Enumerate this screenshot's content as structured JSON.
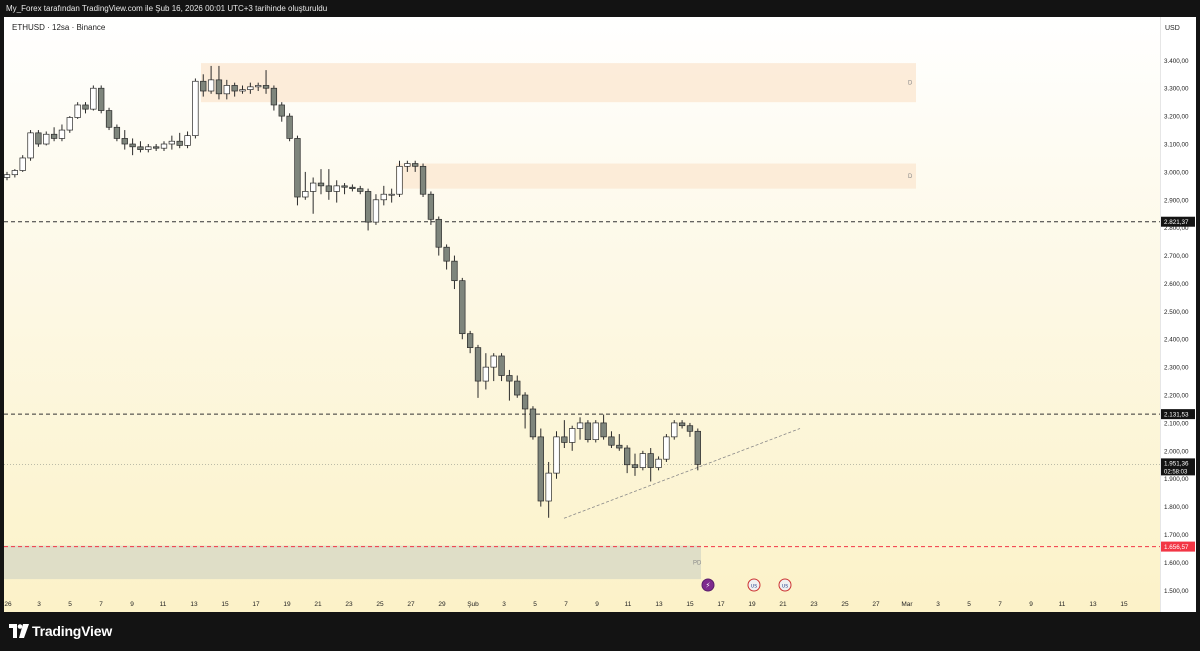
{
  "header": {
    "caption": "My_Forex tarafından TradingView.com ile Şub 16, 2026 00:01 UTC+3 tarihinde oluşturuldu"
  },
  "chart": {
    "legend": "ETHUSD · 12sa · Binance",
    "currency": "USD",
    "zone_labels": [
      "D",
      "D",
      "PD"
    ],
    "price_tags": [
      {
        "label": "2.821,37",
        "price": 2821.37,
        "style": "dark"
      },
      {
        "label": "2.131,53",
        "price": 2131.53,
        "style": "dark"
      },
      {
        "current": "1.951,36",
        "countdown": "02:58:03",
        "price": 1951.36,
        "style": "dark"
      },
      {
        "label": "1.656,57",
        "price": 1656.57,
        "style": "red"
      }
    ],
    "colors": {
      "bull": "#ffffff",
      "bear": "#7e857c",
      "wick": "#2a2a2a",
      "red_tag": "#f23645",
      "dark_tag": "#131313",
      "zone": "#fbe9d3",
      "pd_zone": "#d9d9c6"
    }
  },
  "chart_data": {
    "type": "candlestick",
    "title": "ETHUSD · 12sa · Binance",
    "y_unit": "USD",
    "ylim": [
      1440,
      3455
    ],
    "y_ticks": [
      "1.500,00",
      "1.600,00",
      "1.700,00",
      "1.800,00",
      "1.900,00",
      "2.000,00",
      "2.100,00",
      "2.200,00",
      "2.300,00",
      "2.400,00",
      "2.500,00",
      "2.600,00",
      "2.700,00",
      "2.800,00",
      "2.900,00",
      "3.000,00",
      "3.100,00",
      "3.200,00",
      "3.300,00",
      "3.400,00"
    ],
    "x_ticks": [
      "26",
      "3",
      "5",
      "7",
      "9",
      "11",
      "13",
      "15",
      "17",
      "19",
      "21",
      "23",
      "25",
      "27",
      "29",
      "Şub",
      "3",
      "5",
      "7",
      "9",
      "11",
      "13",
      "15",
      "17",
      "19",
      "21",
      "23",
      "25",
      "27",
      "Mar",
      "3",
      "5",
      "7",
      "9",
      "11",
      "13",
      "15"
    ],
    "horizontal_lines": [
      2821.37,
      2131.53,
      1656.57
    ],
    "current_price": 1951.36,
    "zones": [
      {
        "label": "D",
        "from": 3250,
        "to": 3390
      },
      {
        "label": "D",
        "from": 2940,
        "to": 3030
      },
      {
        "label": "PD",
        "from": 1540,
        "to": 1660
      }
    ],
    "trendline": [
      {
        "price": 1758
      },
      {
        "price": 2080
      }
    ],
    "candles": [
      {
        "o": 2980,
        "h": 3000,
        "l": 2970,
        "c": 2990
      },
      {
        "o": 2990,
        "h": 3010,
        "l": 2980,
        "c": 3005
      },
      {
        "o": 3005,
        "h": 3060,
        "l": 3000,
        "c": 3050
      },
      {
        "o": 3050,
        "h": 3150,
        "l": 3040,
        "c": 3140
      },
      {
        "o": 3140,
        "h": 3150,
        "l": 3090,
        "c": 3100
      },
      {
        "o": 3100,
        "h": 3145,
        "l": 3095,
        "c": 3135
      },
      {
        "o": 3135,
        "h": 3160,
        "l": 3110,
        "c": 3120
      },
      {
        "o": 3120,
        "h": 3170,
        "l": 3110,
        "c": 3150
      },
      {
        "o": 3150,
        "h": 3200,
        "l": 3140,
        "c": 3195
      },
      {
        "o": 3195,
        "h": 3250,
        "l": 3190,
        "c": 3240
      },
      {
        "o": 3240,
        "h": 3250,
        "l": 3210,
        "c": 3225
      },
      {
        "o": 3225,
        "h": 3310,
        "l": 3220,
        "c": 3300
      },
      {
        "o": 3300,
        "h": 3310,
        "l": 3210,
        "c": 3220
      },
      {
        "o": 3220,
        "h": 3230,
        "l": 3150,
        "c": 3160
      },
      {
        "o": 3160,
        "h": 3170,
        "l": 3110,
        "c": 3120
      },
      {
        "o": 3120,
        "h": 3150,
        "l": 3080,
        "c": 3100
      },
      {
        "o": 3100,
        "h": 3120,
        "l": 3060,
        "c": 3090
      },
      {
        "o": 3090,
        "h": 3110,
        "l": 3070,
        "c": 3080
      },
      {
        "o": 3080,
        "h": 3100,
        "l": 3070,
        "c": 3090
      },
      {
        "o": 3090,
        "h": 3100,
        "l": 3075,
        "c": 3085
      },
      {
        "o": 3085,
        "h": 3110,
        "l": 3075,
        "c": 3100
      },
      {
        "o": 3100,
        "h": 3130,
        "l": 3080,
        "c": 3110
      },
      {
        "o": 3110,
        "h": 3140,
        "l": 3085,
        "c": 3095
      },
      {
        "o": 3095,
        "h": 3145,
        "l": 3085,
        "c": 3130
      },
      {
        "o": 3130,
        "h": 3335,
        "l": 3120,
        "c": 3325
      },
      {
        "o": 3325,
        "h": 3350,
        "l": 3270,
        "c": 3290
      },
      {
        "o": 3290,
        "h": 3380,
        "l": 3280,
        "c": 3330
      },
      {
        "o": 3330,
        "h": 3380,
        "l": 3260,
        "c": 3280
      },
      {
        "o": 3280,
        "h": 3330,
        "l": 3260,
        "c": 3310
      },
      {
        "o": 3310,
        "h": 3320,
        "l": 3270,
        "c": 3290
      },
      {
        "o": 3290,
        "h": 3310,
        "l": 3280,
        "c": 3295
      },
      {
        "o": 3295,
        "h": 3320,
        "l": 3280,
        "c": 3305
      },
      {
        "o": 3305,
        "h": 3320,
        "l": 3290,
        "c": 3310
      },
      {
        "o": 3310,
        "h": 3365,
        "l": 3280,
        "c": 3300
      },
      {
        "o": 3300,
        "h": 3310,
        "l": 3220,
        "c": 3240
      },
      {
        "o": 3240,
        "h": 3250,
        "l": 3180,
        "c": 3200
      },
      {
        "o": 3200,
        "h": 3210,
        "l": 3110,
        "c": 3120
      },
      {
        "o": 3120,
        "h": 3130,
        "l": 2880,
        "c": 2910
      },
      {
        "o": 2910,
        "h": 3000,
        "l": 2900,
        "c": 2930
      },
      {
        "o": 2930,
        "h": 2980,
        "l": 2850,
        "c": 2960
      },
      {
        "o": 2960,
        "h": 3010,
        "l": 2920,
        "c": 2950
      },
      {
        "o": 2950,
        "h": 3010,
        "l": 2900,
        "c": 2930
      },
      {
        "o": 2930,
        "h": 2970,
        "l": 2890,
        "c": 2950
      },
      {
        "o": 2950,
        "h": 2960,
        "l": 2920,
        "c": 2945
      },
      {
        "o": 2945,
        "h": 2955,
        "l": 2930,
        "c": 2940
      },
      {
        "o": 2940,
        "h": 2950,
        "l": 2920,
        "c": 2930
      },
      {
        "o": 2930,
        "h": 2940,
        "l": 2790,
        "c": 2820
      },
      {
        "o": 2820,
        "h": 2920,
        "l": 2810,
        "c": 2900
      },
      {
        "o": 2900,
        "h": 2950,
        "l": 2880,
        "c": 2920
      },
      {
        "o": 2920,
        "h": 2940,
        "l": 2890,
        "c": 2920
      },
      {
        "o": 2920,
        "h": 3040,
        "l": 2910,
        "c": 3020
      },
      {
        "o": 3020,
        "h": 3040,
        "l": 3000,
        "c": 3030
      },
      {
        "o": 3030,
        "h": 3040,
        "l": 3000,
        "c": 3020
      },
      {
        "o": 3020,
        "h": 3030,
        "l": 2910,
        "c": 2920
      },
      {
        "o": 2920,
        "h": 2930,
        "l": 2810,
        "c": 2830
      },
      {
        "o": 2830,
        "h": 2840,
        "l": 2700,
        "c": 2730
      },
      {
        "o": 2730,
        "h": 2740,
        "l": 2650,
        "c": 2680
      },
      {
        "o": 2680,
        "h": 2700,
        "l": 2580,
        "c": 2610
      },
      {
        "o": 2610,
        "h": 2620,
        "l": 2400,
        "c": 2420
      },
      {
        "o": 2420,
        "h": 2430,
        "l": 2350,
        "c": 2370
      },
      {
        "o": 2370,
        "h": 2380,
        "l": 2190,
        "c": 2250
      },
      {
        "o": 2250,
        "h": 2350,
        "l": 2220,
        "c": 2300
      },
      {
        "o": 2300,
        "h": 2350,
        "l": 2250,
        "c": 2340
      },
      {
        "o": 2340,
        "h": 2350,
        "l": 2250,
        "c": 2270
      },
      {
        "o": 2270,
        "h": 2290,
        "l": 2180,
        "c": 2250
      },
      {
        "o": 2250,
        "h": 2270,
        "l": 2190,
        "c": 2200
      },
      {
        "o": 2200,
        "h": 2210,
        "l": 2080,
        "c": 2150
      },
      {
        "o": 2150,
        "h": 2160,
        "l": 2040,
        "c": 2050
      },
      {
        "o": 2050,
        "h": 2080,
        "l": 1800,
        "c": 1820
      },
      {
        "o": 1820,
        "h": 1960,
        "l": 1760,
        "c": 1920
      },
      {
        "o": 1920,
        "h": 2070,
        "l": 1900,
        "c": 2050
      },
      {
        "o": 2050,
        "h": 2110,
        "l": 2010,
        "c": 2030
      },
      {
        "o": 2030,
        "h": 2090,
        "l": 2000,
        "c": 2080
      },
      {
        "o": 2080,
        "h": 2120,
        "l": 2040,
        "c": 2100
      },
      {
        "o": 2100,
        "h": 2110,
        "l": 2030,
        "c": 2040
      },
      {
        "o": 2040,
        "h": 2110,
        "l": 2030,
        "c": 2100
      },
      {
        "o": 2100,
        "h": 2130,
        "l": 2040,
        "c": 2050
      },
      {
        "o": 2050,
        "h": 2070,
        "l": 2010,
        "c": 2020
      },
      {
        "o": 2020,
        "h": 2060,
        "l": 2000,
        "c": 2010
      },
      {
        "o": 2010,
        "h": 2020,
        "l": 1920,
        "c": 1950
      },
      {
        "o": 1950,
        "h": 1990,
        "l": 1910,
        "c": 1940
      },
      {
        "o": 1940,
        "h": 2000,
        "l": 1930,
        "c": 1990
      },
      {
        "o": 1990,
        "h": 2010,
        "l": 1890,
        "c": 1940
      },
      {
        "o": 1940,
        "h": 1980,
        "l": 1930,
        "c": 1970
      },
      {
        "o": 1970,
        "h": 2060,
        "l": 1960,
        "c": 2050
      },
      {
        "o": 2050,
        "h": 2110,
        "l": 2040,
        "c": 2100
      },
      {
        "o": 2100,
        "h": 2110,
        "l": 2080,
        "c": 2090
      },
      {
        "o": 2090,
        "h": 2100,
        "l": 2050,
        "c": 2070
      },
      {
        "o": 2070,
        "h": 2080,
        "l": 1930,
        "c": 1951.36
      }
    ]
  },
  "event_markers": [
    {
      "name": "lightning-event-icon",
      "glyph": "⚡"
    },
    {
      "name": "us-flag-event-icon-1",
      "glyph": "US"
    },
    {
      "name": "us-flag-event-icon-2",
      "glyph": "US"
    }
  ],
  "footer": {
    "brand": "TradingView"
  }
}
